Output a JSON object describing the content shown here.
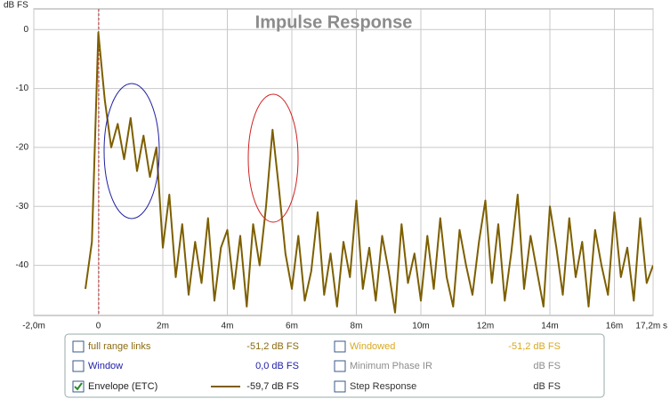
{
  "chart_data": {
    "type": "line",
    "title": "Impulse Response",
    "y_label": "dB FS",
    "xlim": [
      -2,
      17.2
    ],
    "ylim": [
      -48.5,
      3.5
    ],
    "xticks": [
      {
        "value": -2,
        "label": "-2,0m"
      },
      0,
      {
        "value": 2,
        "label": "2m"
      },
      {
        "value": 4,
        "label": "4m"
      },
      {
        "value": 6,
        "label": "6m"
      },
      {
        "value": 8,
        "label": "8m"
      },
      {
        "value": 10,
        "label": "10m"
      },
      {
        "value": 12,
        "label": "12m"
      },
      {
        "value": 14,
        "label": "14m"
      },
      {
        "value": 16,
        "label": "16m"
      },
      {
        "value": 17.2,
        "label": "17,2m s"
      }
    ],
    "yticks": [
      0,
      -10,
      -20,
      -30,
      -40
    ],
    "grid": true,
    "series": [
      {
        "name": "Envelope (ETC)",
        "color": "#7d5f00",
        "readout": "-59,7 dB FS",
        "checked": true,
        "x": [
          -0.4,
          -0.2,
          0,
          0.2,
          0.4,
          0.6,
          0.8,
          1,
          1.2,
          1.4,
          1.6,
          1.8,
          2,
          2.2,
          2.4,
          2.6,
          2.8,
          3,
          3.2,
          3.4,
          3.6,
          3.8,
          4,
          4.2,
          4.4,
          4.6,
          4.8,
          5,
          5.2,
          5.4,
          5.6,
          5.8,
          6,
          6.2,
          6.4,
          6.6,
          6.8,
          7,
          7.2,
          7.4,
          7.6,
          7.8,
          8,
          8.2,
          8.4,
          8.6,
          8.8,
          9,
          9.2,
          9.4,
          9.6,
          9.8,
          10,
          10.2,
          10.4,
          10.6,
          10.8,
          11,
          11.2,
          11.4,
          11.6,
          11.8,
          12,
          12.2,
          12.4,
          12.6,
          12.8,
          13,
          13.2,
          13.4,
          13.6,
          13.8,
          14,
          14.2,
          14.4,
          14.6,
          14.8,
          15,
          15.2,
          15.4,
          15.6,
          15.8,
          16,
          16.2,
          16.4,
          16.6,
          16.8,
          17,
          17.2
        ],
        "values": [
          -44,
          -36,
          -0.5,
          -12,
          -20,
          -16,
          -22,
          -15,
          -24,
          -18,
          -25,
          -20,
          -37,
          -28,
          -42,
          -33,
          -45,
          -36,
          -43,
          -32,
          -46,
          -37,
          -34,
          -44,
          -35,
          -47,
          -33,
          -40,
          -30,
          -17,
          -27,
          -38,
          -44,
          -35,
          -46,
          -41,
          -31,
          -45,
          -38,
          -47,
          -36,
          -42,
          -29,
          -44,
          -37,
          -46,
          -35,
          -41,
          -48,
          -33,
          -43,
          -38,
          -46,
          -35,
          -44,
          -32,
          -42,
          -47,
          -34,
          -40,
          -45,
          -36,
          -29,
          -43,
          -33,
          -46,
          -38,
          -28,
          -44,
          -35,
          -41,
          -47,
          -30,
          -37,
          -45,
          -32,
          -42,
          -36,
          -47,
          -34,
          -40,
          -45,
          -31,
          -42,
          -37,
          -46,
          -32,
          -43,
          -40
        ]
      }
    ]
  },
  "legend_panel": {
    "items": [
      {
        "label": "full range links",
        "readout": "-51,2 dB FS",
        "checked": false,
        "color": "#8a6a10"
      },
      {
        "label": "Window",
        "readout": "0,0 dB FS",
        "checked": false,
        "color": "#1c1ca8"
      },
      {
        "label": "Windowed",
        "readout": "-51,2 dB FS",
        "checked": false,
        "color": "#d9a820"
      },
      {
        "label": "Minimum Phase IR",
        "readout": "dB FS",
        "checked": false,
        "color": "#8c8c8c"
      },
      {
        "label": "Step Response",
        "readout": "dB FS",
        "checked": false,
        "color": "#333333"
      }
    ]
  }
}
